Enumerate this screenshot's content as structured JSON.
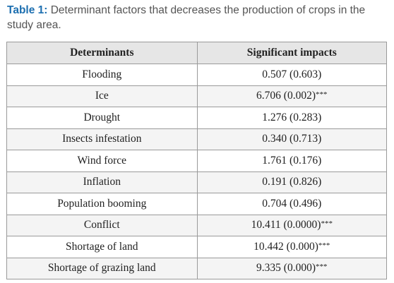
{
  "caption": {
    "label": "Table 1:",
    "text": " Determinant factors that decreases the production of crops in the study area."
  },
  "table": {
    "headers": [
      "Determinants",
      "Significant impacts"
    ],
    "rows": [
      {
        "determinant": "Flooding",
        "impact": "0.507 (0.603)",
        "stars": ""
      },
      {
        "determinant": "Ice",
        "impact": "6.706 (0.002)",
        "stars": "***"
      },
      {
        "determinant": "Drought",
        "impact": "1.276 (0.283)",
        "stars": ""
      },
      {
        "determinant": "Insects infestation",
        "impact": "0.340 (0.713)",
        "stars": ""
      },
      {
        "determinant": "Wind force",
        "impact": "1.761 (0.176)",
        "stars": ""
      },
      {
        "determinant": "Inflation",
        "impact": "0.191 (0.826)",
        "stars": ""
      },
      {
        "determinant": "Population booming",
        "impact": "0.704 (0.496)",
        "stars": ""
      },
      {
        "determinant": "Conflict",
        "impact": "10.411 (0.0000)",
        "stars": "***"
      },
      {
        "determinant": "Shortage of land",
        "impact": "10.442 (0.000)",
        "stars": "***"
      },
      {
        "determinant": "Shortage of grazing land",
        "impact": "9.335 (0.000)",
        "stars": "***"
      }
    ]
  }
}
